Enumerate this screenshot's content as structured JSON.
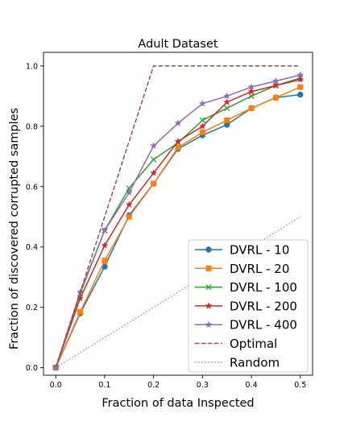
{
  "chart_data": {
    "type": "line",
    "title": "Adult Dataset",
    "xlabel": "Fraction of data Inspected",
    "ylabel": "Fraction of discovered corrupted samples",
    "xlim": [
      -0.025,
      0.525
    ],
    "ylim": [
      -0.025,
      1.045
    ],
    "xticks": [
      0.0,
      0.1,
      0.2,
      0.3,
      0.4,
      0.5
    ],
    "xtick_labels": [
      "0.0",
      "0.1",
      "0.2",
      "0.3",
      "0.4",
      "0.5"
    ],
    "yticks": [
      0.0,
      0.2,
      0.4,
      0.6,
      0.8,
      1.0
    ],
    "ytick_labels": [
      "0.0",
      "0.2",
      "0.4",
      "0.6",
      "0.8",
      "1.0"
    ],
    "grid": false,
    "legend_position": "bottom-right",
    "series": [
      {
        "name": "DVRL - 10",
        "color": "#1f77b4",
        "marker": "circle",
        "dash": "solid",
        "x": [
          0.0,
          0.05,
          0.1,
          0.15,
          0.2,
          0.25,
          0.3,
          0.35,
          0.4,
          0.45,
          0.5
        ],
        "y": [
          0.0,
          0.18,
          0.335,
          0.505,
          0.61,
          0.725,
          0.77,
          0.805,
          0.86,
          0.895,
          0.905
        ]
      },
      {
        "name": "DVRL - 20",
        "color": "#ff7f0e",
        "marker": "square",
        "dash": "solid",
        "x": [
          0.0,
          0.05,
          0.1,
          0.15,
          0.2,
          0.25,
          0.3,
          0.35,
          0.4,
          0.45,
          0.5
        ],
        "y": [
          0.0,
          0.185,
          0.355,
          0.5,
          0.61,
          0.73,
          0.78,
          0.82,
          0.86,
          0.895,
          0.93
        ]
      },
      {
        "name": "DVRL - 100",
        "color": "#2ca02c",
        "marker": "x",
        "dash": "solid",
        "x": [
          0.0,
          0.05,
          0.1,
          0.15,
          0.2,
          0.25,
          0.3,
          0.35,
          0.4,
          0.45,
          0.5
        ],
        "y": [
          0.0,
          0.245,
          0.455,
          0.595,
          0.69,
          0.745,
          0.82,
          0.86,
          0.9,
          0.935,
          0.96
        ]
      },
      {
        "name": "DVRL - 200",
        "color": "#d62728",
        "marker": "star",
        "dash": "solid",
        "x": [
          0.0,
          0.05,
          0.1,
          0.15,
          0.2,
          0.25,
          0.3,
          0.35,
          0.4,
          0.45,
          0.5
        ],
        "y": [
          0.0,
          0.23,
          0.405,
          0.54,
          0.645,
          0.75,
          0.8,
          0.88,
          0.915,
          0.935,
          0.955
        ]
      },
      {
        "name": "DVRL - 400",
        "color": "#9467bd",
        "marker": "star",
        "dash": "solid",
        "x": [
          0.0,
          0.05,
          0.1,
          0.15,
          0.2,
          0.25,
          0.3,
          0.35,
          0.4,
          0.45,
          0.5
        ],
        "y": [
          0.0,
          0.25,
          0.455,
          0.58,
          0.735,
          0.81,
          0.875,
          0.9,
          0.93,
          0.95,
          0.97
        ]
      },
      {
        "name": "Optimal",
        "color": "#8c564b",
        "marker": "none",
        "dash": "dashed",
        "x": [
          0.0,
          0.2,
          0.5
        ],
        "y": [
          0.0,
          1.0,
          1.0
        ]
      },
      {
        "name": "Random",
        "color": "#e377c2",
        "marker": "none",
        "dash": "dotted",
        "x": [
          0.0,
          0.5
        ],
        "y": [
          0.0,
          0.5
        ]
      }
    ]
  }
}
